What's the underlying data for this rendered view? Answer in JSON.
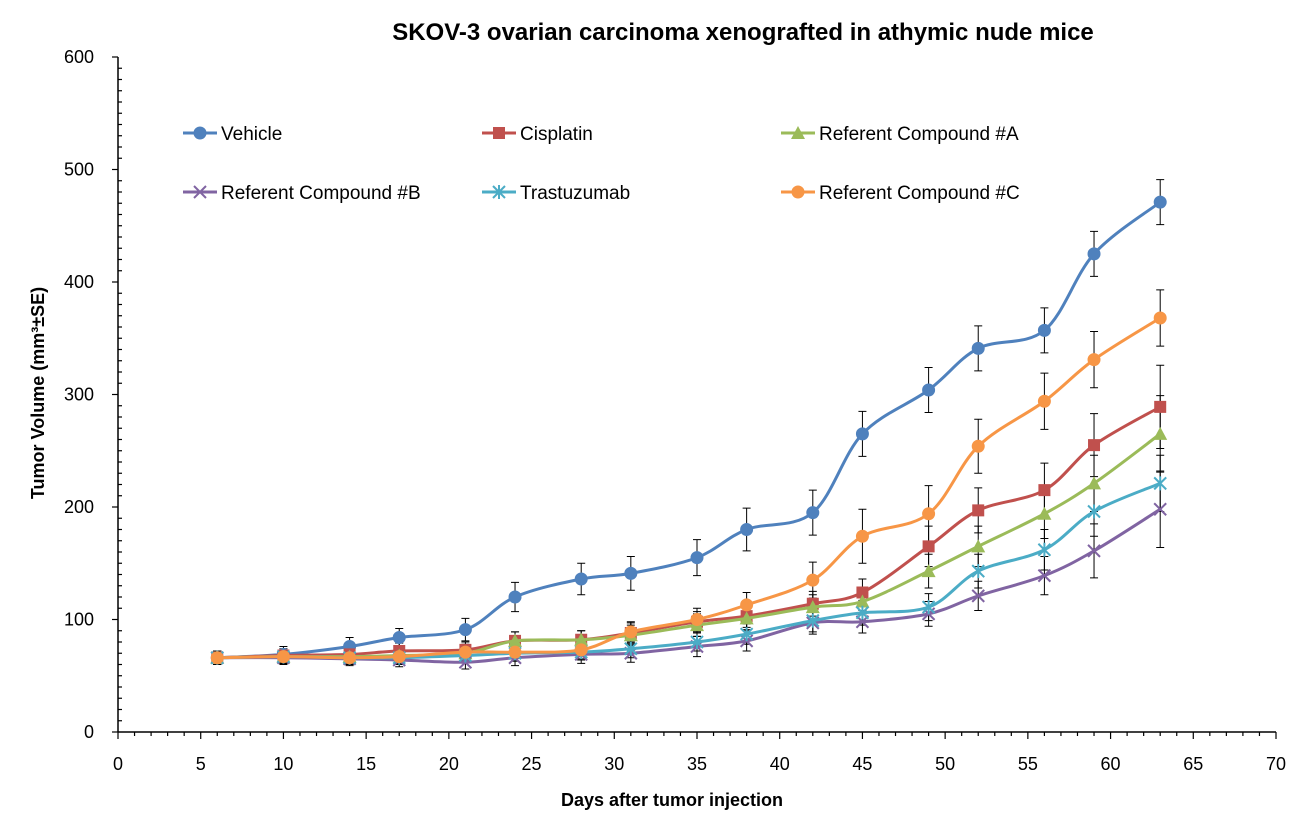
{
  "chart_data": {
    "type": "line",
    "title": "SKOV-3 ovarian carcinoma xenografted in athymic nude mice",
    "xlabel": "Days after tumor injection",
    "ylabel": "Tumor Volume (mm³±SE)",
    "xlim": [
      0,
      70
    ],
    "ylim": [
      0,
      600
    ],
    "xticks": [
      0,
      5,
      10,
      15,
      20,
      25,
      30,
      35,
      40,
      45,
      50,
      55,
      60,
      65,
      70
    ],
    "yticks": [
      0,
      100,
      200,
      300,
      400,
      500,
      600
    ],
    "grid": false,
    "legend_position": "top",
    "x": [
      6,
      10,
      14,
      17,
      21,
      24,
      28,
      31,
      35,
      38,
      42,
      45,
      49,
      52,
      56,
      59,
      63
    ],
    "series": [
      {
        "name": "Vehicle",
        "color": "#4F81BD",
        "marker": "circle",
        "values": [
          66,
          69,
          76,
          84,
          91,
          120,
          136,
          141,
          155,
          180,
          195,
          265,
          304,
          341,
          357,
          425,
          471
        ],
        "errors": [
          6,
          7,
          8,
          8,
          10,
          13,
          14,
          15,
          16,
          19,
          20,
          20,
          20,
          20,
          20,
          20,
          20
        ]
      },
      {
        "name": "Cisplatin",
        "color": "#C0504D",
        "marker": "square",
        "values": [
          66,
          68,
          69,
          72,
          73,
          81,
          82,
          88,
          98,
          103,
          114,
          124,
          165,
          197,
          215,
          255,
          289
        ],
        "errors": [
          6,
          6,
          6,
          7,
          7,
          8,
          8,
          9,
          9,
          10,
          11,
          12,
          18,
          20,
          24,
          28,
          37
        ]
      },
      {
        "name": "Referent Compound #A",
        "color": "#9BBB59",
        "marker": "triangle",
        "values": [
          66,
          67,
          67,
          68,
          70,
          81,
          82,
          86,
          95,
          101,
          111,
          116,
          143,
          165,
          194,
          221,
          265
        ],
        "errors": [
          6,
          6,
          6,
          6,
          7,
          8,
          8,
          9,
          10,
          10,
          11,
          12,
          15,
          18,
          22,
          25,
          34
        ]
      },
      {
        "name": "Referent Compound #B",
        "color": "#8064A2",
        "marker": "x",
        "values": [
          66,
          66,
          65,
          64,
          62,
          66,
          69,
          70,
          76,
          81,
          97,
          98,
          105,
          121,
          139,
          161,
          198
        ],
        "errors": [
          6,
          6,
          6,
          6,
          6,
          7,
          8,
          8,
          9,
          9,
          10,
          10,
          11,
          13,
          17,
          24,
          34
        ]
      },
      {
        "name": "Trastuzumab",
        "color": "#4BACC6",
        "marker": "star",
        "values": [
          66,
          67,
          66,
          66,
          68,
          70,
          71,
          74,
          80,
          87,
          99,
          106,
          111,
          143,
          162,
          196,
          221
        ],
        "errors": [
          6,
          6,
          6,
          6,
          6,
          7,
          7,
          8,
          8,
          9,
          10,
          11,
          12,
          15,
          18,
          22,
          25
        ]
      },
      {
        "name": "Referent Compound #C",
        "color": "#F79646",
        "marker": "circle",
        "values": [
          66,
          67,
          66,
          67,
          71,
          71,
          73,
          89,
          100,
          113,
          135,
          174,
          194,
          254,
          294,
          331,
          368
        ],
        "errors": [
          6,
          6,
          6,
          6,
          7,
          8,
          8,
          9,
          10,
          11,
          16,
          24,
          25,
          24,
          25,
          25,
          25
        ]
      }
    ]
  }
}
